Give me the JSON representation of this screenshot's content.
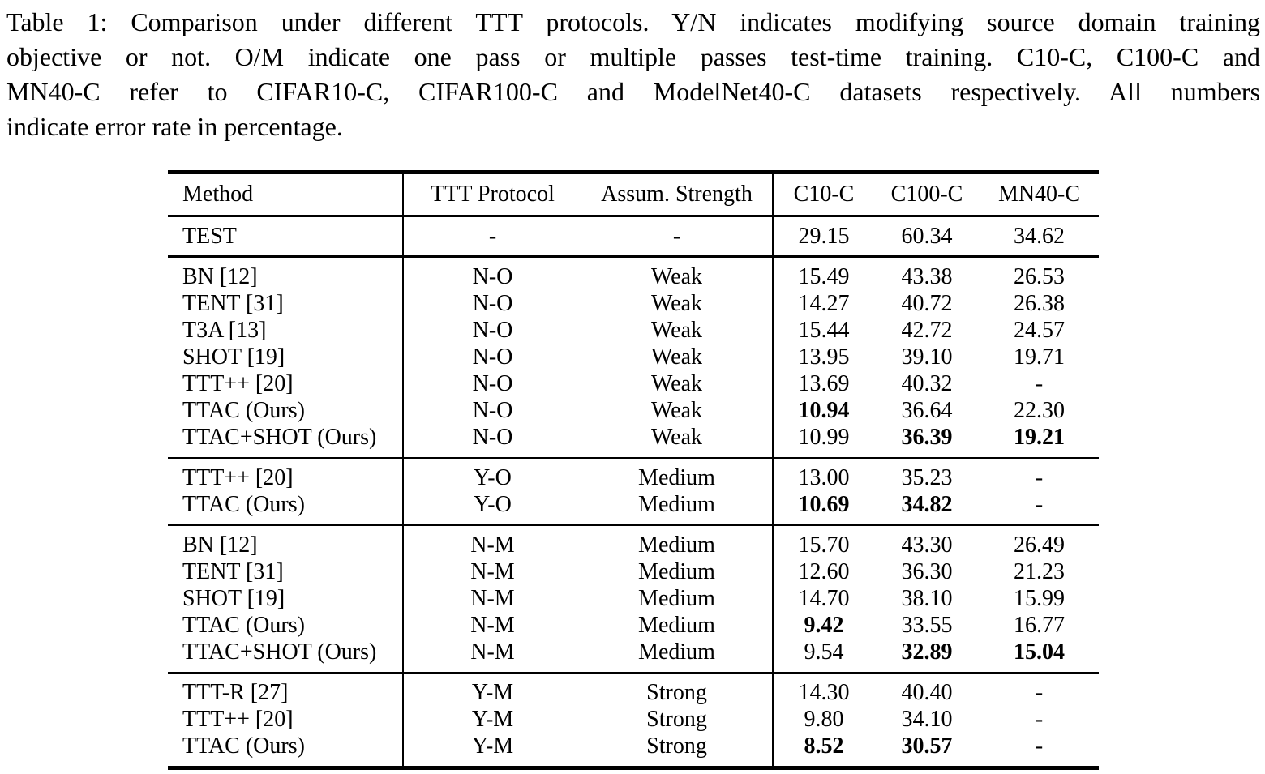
{
  "page": {
    "background": "#ffffff",
    "text_color": "#000000"
  },
  "caption": {
    "lines": [
      "Table 1: Comparison under different TTT protocols. Y/N indicates modifying source domain training",
      "objective or not. O/M indicate one pass or multiple passes test-time training. C10-C, C100-C and",
      "MN40-C refer to CIFAR10-C, CIFAR100-C and ModelNet40-C datasets respectively. All numbers",
      "indicate error rate in percentage."
    ],
    "full_text": "Table 1: Comparison under different TTT protocols. Y/N indicates modifying source domain training objective or not. O/M indicate one pass or multiple passes test-time training. C10-C, C100-C and MN40-C refer to CIFAR10-C, CIFAR100-C and ModelNet40-C datasets respectively. All numbers indicate error rate in percentage."
  },
  "table": {
    "columns": [
      "Method",
      "TTT Protocol",
      "Assum. Strength",
      "C10-C",
      "C100-C",
      "MN40-C"
    ],
    "groups": [
      {
        "name": "test-baseline",
        "rows": [
          {
            "method": "TEST",
            "protocol": "-",
            "strength": "-",
            "c10": "29.15",
            "c100": "60.34",
            "mn40": "34.62",
            "bold": []
          }
        ]
      },
      {
        "name": "protocol-N-O",
        "rows": [
          {
            "method": "BN [12]",
            "protocol": "N-O",
            "strength": "Weak",
            "c10": "15.49",
            "c100": "43.38",
            "mn40": "26.53",
            "bold": []
          },
          {
            "method": "TENT [31]",
            "protocol": "N-O",
            "strength": "Weak",
            "c10": "14.27",
            "c100": "40.72",
            "mn40": "26.38",
            "bold": []
          },
          {
            "method": "T3A [13]",
            "protocol": "N-O",
            "strength": "Weak",
            "c10": "15.44",
            "c100": "42.72",
            "mn40": "24.57",
            "bold": []
          },
          {
            "method": "SHOT [19]",
            "protocol": "N-O",
            "strength": "Weak",
            "c10": "13.95",
            "c100": "39.10",
            "mn40": "19.71",
            "bold": []
          },
          {
            "method": "TTT++ [20]",
            "protocol": "N-O",
            "strength": "Weak",
            "c10": "13.69",
            "c100": "40.32",
            "mn40": "-",
            "bold": []
          },
          {
            "method": "TTAC (Ours)",
            "protocol": "N-O",
            "strength": "Weak",
            "c10": "10.94",
            "c100": "36.64",
            "mn40": "22.30",
            "bold": [
              "c10"
            ]
          },
          {
            "method": "TTAC+SHOT (Ours)",
            "protocol": "N-O",
            "strength": "Weak",
            "c10": "10.99",
            "c100": "36.39",
            "mn40": "19.21",
            "bold": [
              "c100",
              "mn40"
            ]
          }
        ]
      },
      {
        "name": "protocol-Y-O",
        "rows": [
          {
            "method": "TTT++ [20]",
            "protocol": "Y-O",
            "strength": "Medium",
            "c10": "13.00",
            "c100": "35.23",
            "mn40": "-",
            "bold": []
          },
          {
            "method": "TTAC (Ours)",
            "protocol": "Y-O",
            "strength": "Medium",
            "c10": "10.69",
            "c100": "34.82",
            "mn40": "-",
            "bold": [
              "c10",
              "c100"
            ]
          }
        ]
      },
      {
        "name": "protocol-N-M",
        "rows": [
          {
            "method": "BN [12]",
            "protocol": "N-M",
            "strength": "Medium",
            "c10": "15.70",
            "c100": "43.30",
            "mn40": "26.49",
            "bold": []
          },
          {
            "method": "TENT [31]",
            "protocol": "N-M",
            "strength": "Medium",
            "c10": "12.60",
            "c100": "36.30",
            "mn40": "21.23",
            "bold": []
          },
          {
            "method": "SHOT [19]",
            "protocol": "N-M",
            "strength": "Medium",
            "c10": "14.70",
            "c100": "38.10",
            "mn40": "15.99",
            "bold": []
          },
          {
            "method": "TTAC (Ours)",
            "protocol": "N-M",
            "strength": "Medium",
            "c10": "9.42",
            "c100": "33.55",
            "mn40": "16.77",
            "bold": [
              "c10"
            ]
          },
          {
            "method": "TTAC+SHOT (Ours)",
            "protocol": "N-M",
            "strength": "Medium",
            "c10": "9.54",
            "c100": "32.89",
            "mn40": "15.04",
            "bold": [
              "c100",
              "mn40"
            ]
          }
        ]
      },
      {
        "name": "protocol-Y-M",
        "rows": [
          {
            "method": "TTT-R [27]",
            "protocol": "Y-M",
            "strength": "Strong",
            "c10": "14.30",
            "c100": "40.40",
            "mn40": "-",
            "bold": []
          },
          {
            "method": "TTT++ [20]",
            "protocol": "Y-M",
            "strength": "Strong",
            "c10": "9.80",
            "c100": "34.10",
            "mn40": "-",
            "bold": []
          },
          {
            "method": "TTAC (Ours)",
            "protocol": "Y-M",
            "strength": "Strong",
            "c10": "8.52",
            "c100": "30.57",
            "mn40": "-",
            "bold": [
              "c10",
              "c100"
            ]
          }
        ]
      }
    ]
  }
}
